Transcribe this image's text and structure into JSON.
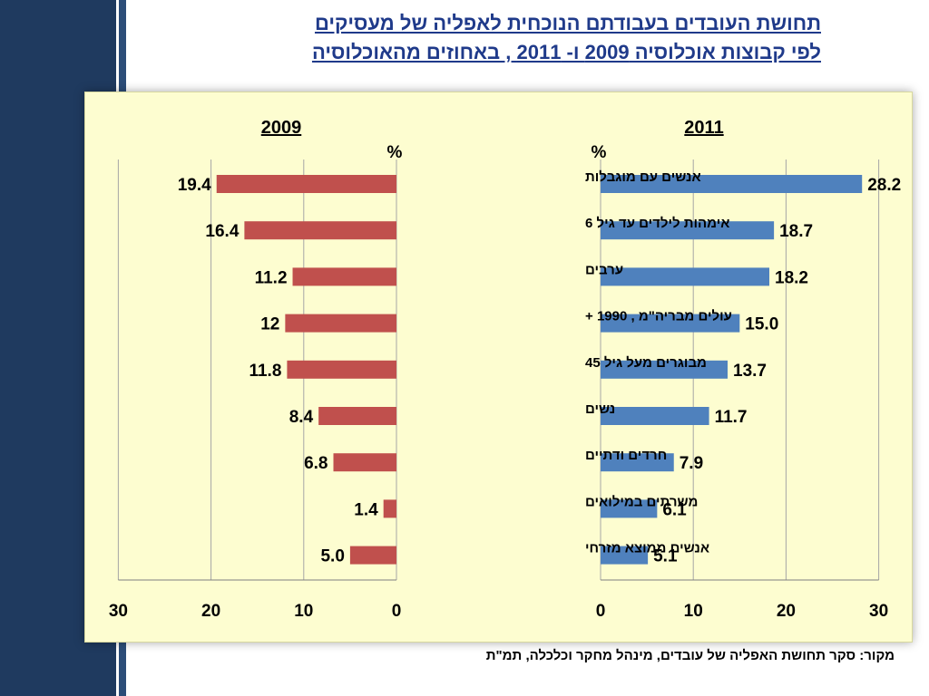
{
  "title": {
    "line1": "תחושת העובדים בעבודתם הנוכחית לאפליה של מעסיקים",
    "line2": "לפי קבוצות אוכלוסיה 2009 ו- 2011 , באחוזים מהאוכלוסיה"
  },
  "source": "מקור: סקר תחושת האפליה של עובדים, מינהל מחקר וכלכלה, תמ\"ת",
  "colors": {
    "bar_2009": "#c0504d",
    "bar_2011": "#4f81bd",
    "background": "#fdfdd0",
    "title": "#1f3a8a",
    "sidebar": "#1f3a5f"
  },
  "chart_data": [
    {
      "type": "bar",
      "title": "2009",
      "unit": "%",
      "orientation": "horizontal",
      "direction": "leftward",
      "categories": [
        "אנשים עם מוגבלות",
        "אימהות לילדים עד גיל 6",
        "ערבים",
        "עולים מבריה\"מ , 1990 +",
        "מבוגרים מעל גיל 45",
        "נשים",
        "חרדים ודתיים",
        "משרתים במילואים",
        "אנשים ממוצא מזרחי"
      ],
      "values": [
        19.4,
        16.4,
        11.2,
        12,
        11.8,
        8.4,
        6.8,
        1.4,
        5.0
      ],
      "labels": [
        "19.4",
        "16.4",
        "11.2",
        "12",
        "11.8",
        "8.4",
        "6.8",
        "1.4",
        "5.0"
      ],
      "xlim": [
        0,
        30
      ],
      "ticks": [
        "30",
        "20",
        "10",
        "0"
      ],
      "grid": true
    },
    {
      "type": "bar",
      "title": "2011",
      "unit": "%",
      "orientation": "horizontal",
      "direction": "rightward",
      "categories": [
        "אנשים עם מוגבלות",
        "אימהות לילדים עד גיל 6",
        "ערבים",
        "עולים מבריה\"מ , 1990 +",
        "מבוגרים מעל גיל 45",
        "נשים",
        "חרדים ודתיים",
        "משרתים במילואים",
        "אנשים ממוצא מזרחי"
      ],
      "values": [
        28.2,
        18.7,
        18.2,
        15.0,
        13.7,
        11.7,
        7.9,
        6.1,
        5.1
      ],
      "labels": [
        "28.2",
        "18.7",
        "18.2",
        "15.0",
        "13.7",
        "11.7",
        "7.9",
        "6.1",
        "5.1"
      ],
      "xlim": [
        0,
        30
      ],
      "ticks": [
        "0",
        "10",
        "20",
        "30"
      ],
      "grid": true
    }
  ]
}
